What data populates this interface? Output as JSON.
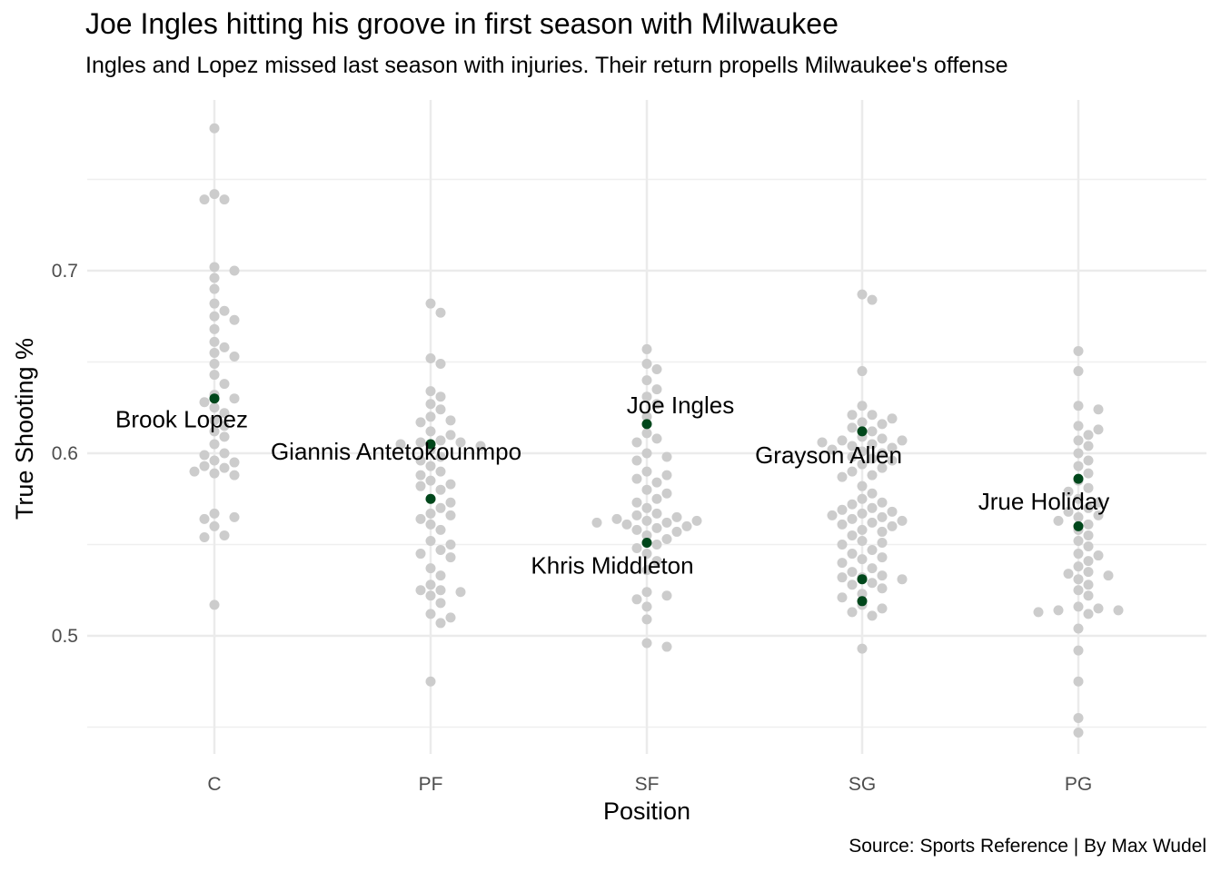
{
  "title": "Joe Ingles hitting his groove in first season with Milwaukee",
  "subtitle": "Ingles and Lopez missed last season with injuries. Their return propells Milwaukee's offense",
  "caption": "Source: Sports Reference | By Max Wudel",
  "colors": {
    "other": "#cccccc",
    "highlight": "#00471b",
    "grid": "#ebebeb"
  },
  "chart_data": {
    "type": "scatter",
    "xlabel": "Position",
    "ylabel": "True Shooting %",
    "categories": [
      "C",
      "PF",
      "SF",
      "SG",
      "PG"
    ],
    "ylim": [
      0.43,
      0.79
    ],
    "y_ticks": [
      0.5,
      0.6,
      0.7
    ],
    "y_tick_labels": [
      "0.5",
      "0.6",
      "0.7"
    ],
    "grid": true,
    "series": [
      {
        "key": "league",
        "points": {
          "C": [
            0.778,
            0.742,
            0.739,
            0.739,
            0.702,
            0.7,
            0.696,
            0.69,
            0.682,
            0.678,
            0.675,
            0.673,
            0.668,
            0.661,
            0.658,
            0.655,
            0.653,
            0.649,
            0.643,
            0.638,
            0.632,
            0.63,
            0.628,
            0.625,
            0.622,
            0.618,
            0.615,
            0.612,
            0.609,
            0.605,
            0.6,
            0.599,
            0.596,
            0.595,
            0.593,
            0.592,
            0.59,
            0.589,
            0.588,
            0.567,
            0.565,
            0.564,
            0.56,
            0.555,
            0.554,
            0.517
          ],
          "PF": [
            0.682,
            0.677,
            0.652,
            0.649,
            0.634,
            0.631,
            0.627,
            0.624,
            0.62,
            0.618,
            0.617,
            0.612,
            0.61,
            0.607,
            0.606,
            0.606,
            0.605,
            0.604,
            0.602,
            0.598,
            0.596,
            0.593,
            0.59,
            0.588,
            0.585,
            0.583,
            0.582,
            0.58,
            0.575,
            0.573,
            0.57,
            0.567,
            0.566,
            0.564,
            0.561,
            0.558,
            0.552,
            0.55,
            0.547,
            0.545,
            0.543,
            0.537,
            0.533,
            0.528,
            0.525,
            0.525,
            0.524,
            0.522,
            0.518,
            0.512,
            0.51,
            0.507,
            0.475
          ],
          "SF": [
            0.657,
            0.649,
            0.646,
            0.64,
            0.635,
            0.631,
            0.627,
            0.62,
            0.611,
            0.608,
            0.606,
            0.6,
            0.598,
            0.596,
            0.59,
            0.588,
            0.586,
            0.584,
            0.58,
            0.578,
            0.575,
            0.573,
            0.57,
            0.567,
            0.566,
            0.565,
            0.564,
            0.563,
            0.563,
            0.562,
            0.562,
            0.561,
            0.56,
            0.559,
            0.558,
            0.557,
            0.555,
            0.553,
            0.55,
            0.548,
            0.545,
            0.541,
            0.536,
            0.524,
            0.522,
            0.52,
            0.516,
            0.509,
            0.496,
            0.494
          ],
          "SG": [
            0.687,
            0.684,
            0.645,
            0.626,
            0.621,
            0.621,
            0.619,
            0.617,
            0.616,
            0.614,
            0.612,
            0.609,
            0.608,
            0.607,
            0.607,
            0.606,
            0.605,
            0.604,
            0.603,
            0.602,
            0.601,
            0.6,
            0.598,
            0.597,
            0.596,
            0.594,
            0.592,
            0.59,
            0.588,
            0.587,
            0.582,
            0.578,
            0.575,
            0.573,
            0.572,
            0.57,
            0.569,
            0.568,
            0.567,
            0.566,
            0.565,
            0.564,
            0.563,
            0.562,
            0.561,
            0.56,
            0.558,
            0.557,
            0.555,
            0.552,
            0.551,
            0.55,
            0.547,
            0.545,
            0.543,
            0.542,
            0.54,
            0.537,
            0.535,
            0.533,
            0.532,
            0.532,
            0.531,
            0.529,
            0.528,
            0.526,
            0.523,
            0.521,
            0.517,
            0.515,
            0.513,
            0.511,
            0.493
          ],
          "PG": [
            0.656,
            0.645,
            0.626,
            0.624,
            0.615,
            0.613,
            0.61,
            0.607,
            0.604,
            0.6,
            0.596,
            0.593,
            0.589,
            0.585,
            0.581,
            0.579,
            0.575,
            0.573,
            0.57,
            0.568,
            0.566,
            0.565,
            0.563,
            0.561,
            0.558,
            0.555,
            0.552,
            0.549,
            0.545,
            0.544,
            0.541,
            0.538,
            0.535,
            0.534,
            0.533,
            0.531,
            0.528,
            0.525,
            0.522,
            0.516,
            0.515,
            0.514,
            0.514,
            0.513,
            0.512,
            0.504,
            0.492,
            0.475,
            0.455,
            0.447
          ]
        }
      },
      {
        "key": "bucks",
        "points": [
          {
            "name": "Brook Lopez",
            "position": "C",
            "y": 0.63,
            "label": true
          },
          {
            "name": "Giannis Antetokounmpo",
            "position": "PF",
            "y": 0.605,
            "label": true
          },
          {
            "name": "",
            "position": "PF",
            "y": 0.575,
            "label": false
          },
          {
            "name": "Joe Ingles",
            "position": "SF",
            "y": 0.616,
            "label": true
          },
          {
            "name": "Khris Middleton",
            "position": "SF",
            "y": 0.551,
            "label": true
          },
          {
            "name": "Grayson Allen",
            "position": "SG",
            "y": 0.612,
            "label": true
          },
          {
            "name": "",
            "position": "SG",
            "y": 0.531,
            "label": false
          },
          {
            "name": "",
            "position": "SG",
            "y": 0.519,
            "label": false
          },
          {
            "name": "Jrue Holiday",
            "position": "PG",
            "y": 0.586,
            "label": true
          },
          {
            "name": "",
            "position": "PG",
            "y": 0.56,
            "label": false
          }
        ]
      }
    ]
  }
}
